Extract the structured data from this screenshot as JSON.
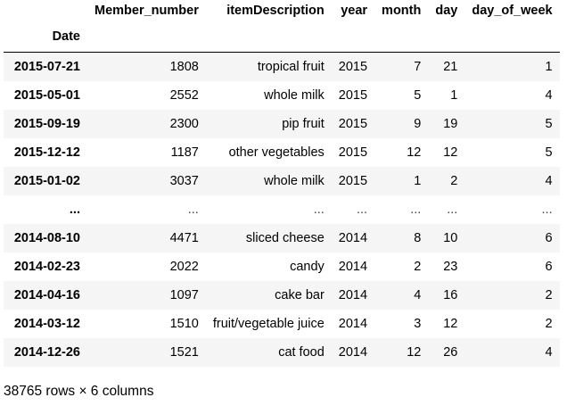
{
  "dataframe": {
    "columns": [
      "Member_number",
      "itemDescription",
      "year",
      "month",
      "day",
      "day_of_week"
    ],
    "index_name": "Date",
    "rows": [
      {
        "index": "2015-07-21",
        "cells": [
          "1808",
          "tropical fruit",
          "2015",
          "7",
          "21",
          "1"
        ]
      },
      {
        "index": "2015-05-01",
        "cells": [
          "2552",
          "whole milk",
          "2015",
          "5",
          "1",
          "4"
        ]
      },
      {
        "index": "2015-09-19",
        "cells": [
          "2300",
          "pip fruit",
          "2015",
          "9",
          "19",
          "5"
        ]
      },
      {
        "index": "2015-12-12",
        "cells": [
          "1187",
          "other vegetables",
          "2015",
          "12",
          "12",
          "5"
        ]
      },
      {
        "index": "2015-01-02",
        "cells": [
          "3037",
          "whole milk",
          "2015",
          "1",
          "2",
          "4"
        ]
      },
      {
        "index": "...",
        "cells": [
          "...",
          "...",
          "...",
          "...",
          "...",
          "..."
        ]
      },
      {
        "index": "2014-08-10",
        "cells": [
          "4471",
          "sliced cheese",
          "2014",
          "8",
          "10",
          "6"
        ]
      },
      {
        "index": "2014-02-23",
        "cells": [
          "2022",
          "candy",
          "2014",
          "2",
          "23",
          "6"
        ]
      },
      {
        "index": "2014-04-16",
        "cells": [
          "1097",
          "cake bar",
          "2014",
          "4",
          "16",
          "2"
        ]
      },
      {
        "index": "2014-03-12",
        "cells": [
          "1510",
          "fruit/vegetable juice",
          "2014",
          "3",
          "12",
          "2"
        ]
      },
      {
        "index": "2014-12-26",
        "cells": [
          "1521",
          "cat food",
          "2014",
          "12",
          "26",
          "4"
        ]
      }
    ],
    "shape_text": "38765 rows × 6 columns"
  }
}
